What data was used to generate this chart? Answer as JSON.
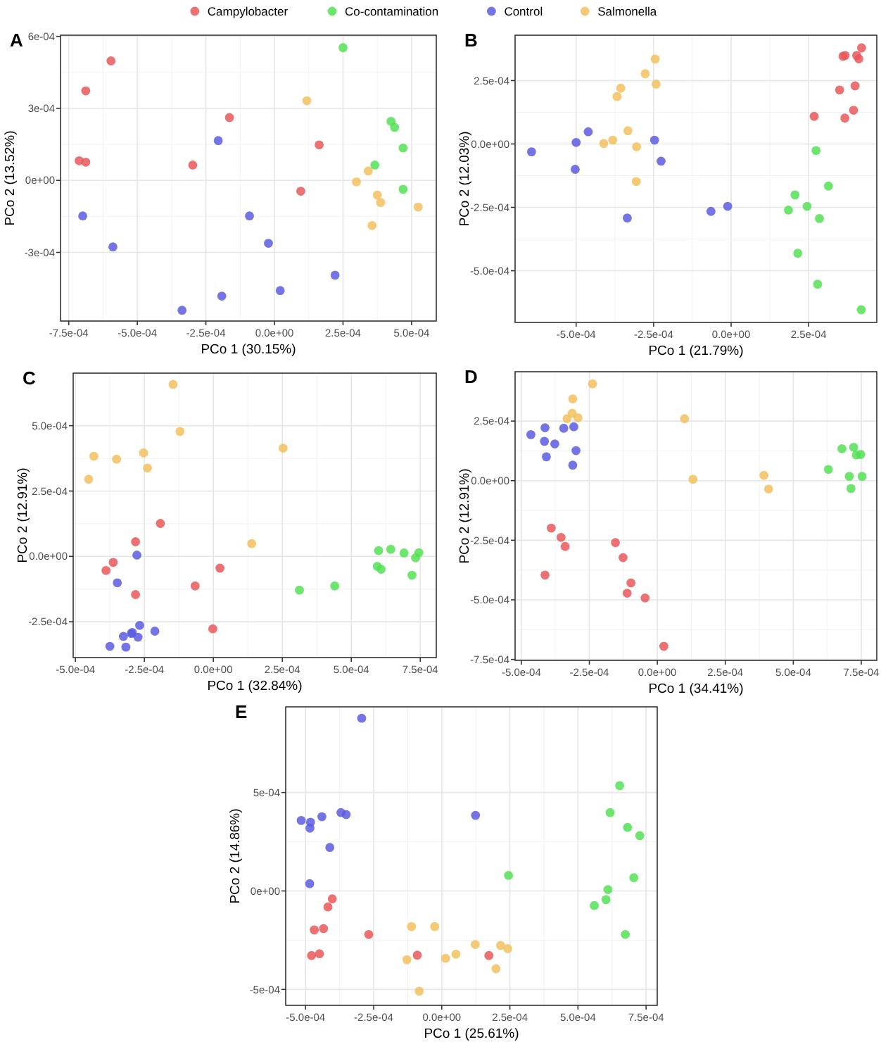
{
  "chart_data": [
    {
      "type": "scatter",
      "title": "A",
      "xlabel": "PCo 1 (30.15%)",
      "ylabel": "PCo 2 (13.52%)",
      "grid": true,
      "legend": "top",
      "marker": "circle",
      "xlim": [
        -0.00078,
        0.00059
      ],
      "ylim": [
        -0.000586,
        0.000605
      ],
      "xticks": [
        {
          "value": -0.00075,
          "label": "-7.5e-04"
        },
        {
          "value": -0.0005,
          "label": "-5.0e-04"
        },
        {
          "value": -0.00025,
          "label": "-2.5e-04"
        },
        {
          "value": 0,
          "label": "0.0e+00"
        },
        {
          "value": 0.00025,
          "label": "2.5e-04"
        },
        {
          "value": 0.0005,
          "label": "5.0e-04"
        }
      ],
      "yticks": [
        {
          "value": -0.0003,
          "label": "-3e-04"
        },
        {
          "value": 0,
          "label": "0e+00"
        },
        {
          "value": 0.0003,
          "label": "3e-04"
        },
        {
          "value": 0.0006,
          "label": "6e-04"
        }
      ],
      "series": [
        {
          "name": "Campylobacter",
          "color": "#e8585a",
          "x": [
            -0.000596,
            -0.000688,
            -0.000712,
            -0.000688,
            -0.000164,
            -0.000298,
            0.000163,
            9.6e-05
          ],
          "values": [
            0.000498,
            0.000373,
            8.2e-05,
            7.6e-05,
            0.000262,
            6.4e-05,
            0.000148,
            -4.5e-05
          ]
        },
        {
          "name": "Co-contamination",
          "color": "#55e055",
          "x": [
            0.00025,
            0.000425,
            0.000438,
            0.000469,
            0.000366,
            0.000469
          ],
          "values": [
            0.000553,
            0.000246,
            0.000221,
            0.000135,
            6.4e-05,
            -3.7e-05
          ]
        },
        {
          "name": "Control",
          "color": "#5c5ce0",
          "x": [
            -0.000205,
            -0.000699,
            -0.000589,
            -9.1e-05,
            -2.2e-05,
            0.000221,
            2.1e-05,
            -0.000192,
            -0.000337
          ],
          "values": [
            0.000166,
            -0.000148,
            -0.000277,
            -0.000148,
            -0.000262,
            -0.000395,
            -0.000459,
            -0.000482,
            -0.000541
          ]
        },
        {
          "name": "Salmonella",
          "color": "#f2c15e",
          "x": [
            0.000118,
            0.000342,
            0.000299,
            0.000375,
            0.000387,
            0.000524,
            0.000356
          ],
          "values": [
            0.000332,
            3.9e-05,
            -6e-06,
            -6.1e-05,
            -9.2e-05,
            -0.000111,
            -0.000188
          ]
        }
      ]
    },
    {
      "type": "scatter",
      "title": "B",
      "xlabel": "PCo 1 (21.79%)",
      "ylabel": "PCo 2 (12.03%)",
      "grid": true,
      "marker": "circle",
      "xlim": [
        -0.000697,
        0.00047
      ],
      "ylim": [
        -0.000704,
        0.000429
      ],
      "xticks": [
        {
          "value": -0.0005,
          "label": "-5.0e-04"
        },
        {
          "value": -0.00025,
          "label": "-2.5e-04"
        },
        {
          "value": 0,
          "label": "0.0e+00"
        },
        {
          "value": 0.00025,
          "label": "2.5e-04"
        }
      ],
      "yticks": [
        {
          "value": -0.0005,
          "label": "-5.0e-04"
        },
        {
          "value": -0.00025,
          "label": "-2.5e-04"
        },
        {
          "value": 0,
          "label": "0.0e+00"
        },
        {
          "value": 0.00025,
          "label": "2.5e-04"
        }
      ],
      "series": [
        {
          "color": "#e8585a",
          "x": [
            0.000421,
            0.000368,
            0.000361,
            0.000405,
            0.000412,
            0.00035,
            0.0004,
            0.000268,
            0.000395,
            0.000367
          ],
          "values": [
            0.000379,
            0.000349,
            0.000346,
            0.000349,
            0.000336,
            0.000213,
            0.000229,
            0.000109,
            0.000133,
            0.000102
          ]
        },
        {
          "color": "#55e055",
          "x": [
            0.000274,
            0.000314,
            0.000206,
            0.000185,
            0.000245,
            0.000285,
            0.000215,
            0.000279,
            0.00042
          ],
          "values": [
            -2.6e-05,
            -0.000166,
            -0.000201,
            -0.000261,
            -0.000246,
            -0.000294,
            -0.000431,
            -0.000553,
            -0.000654
          ]
        },
        {
          "color": "#5c5ce0",
          "x": [
            -0.000644,
            -0.0005,
            -0.000461,
            -0.000503,
            -0.000247,
            -0.000226,
            -0.000335,
            -6.5e-05,
            -1.1e-05
          ],
          "values": [
            -3.1e-05,
            6e-06,
            4.8e-05,
            -0.0001,
            1.5e-05,
            -6.8e-05,
            -0.000292,
            -0.000266,
            -0.000246
          ]
        },
        {
          "color": "#f2c15e",
          "x": [
            -0.000245,
            -0.000277,
            -0.000242,
            -0.000356,
            -0.000368,
            -0.000411,
            -0.000382,
            -0.000333,
            -0.000305,
            -0.000306
          ],
          "values": [
            0.000335,
            0.000277,
            0.000236,
            0.00022,
            0.000187,
            2e-06,
            1.5e-05,
            5.2e-05,
            -1.1e-05,
            -0.000148
          ]
        }
      ]
    },
    {
      "type": "scatter",
      "title": "C",
      "xlabel": "PCo 1 (32.84%)",
      "ylabel": "PCo 2 (12.91%)",
      "grid": true,
      "marker": "circle",
      "xlim": [
        -0.000508,
        0.000808
      ],
      "ylim": [
        -0.000387,
        0.000701
      ],
      "xticks": [
        {
          "value": -0.0005,
          "label": "-5.0e-04"
        },
        {
          "value": -0.00025,
          "label": "-2.5e-04"
        },
        {
          "value": 0,
          "label": "0.0e+00"
        },
        {
          "value": 0.00025,
          "label": "2.5e-04"
        },
        {
          "value": 0.0005,
          "label": "5.0e-04"
        },
        {
          "value": 0.00075,
          "label": "7.5e-04"
        }
      ],
      "yticks": [
        {
          "value": -0.00025,
          "label": "-2.5e-04"
        },
        {
          "value": 0,
          "label": "0.0e+00"
        },
        {
          "value": 0.00025,
          "label": "2.5e-04"
        },
        {
          "value": 0.0005,
          "label": "5.0e-04"
        }
      ],
      "series": [
        {
          "color": "#e8585a",
          "x": [
            -0.000192,
            -0.000282,
            -0.000363,
            -0.000389,
            2.4e-05,
            -6.6e-05,
            -0.000282,
            -2e-06
          ],
          "values": [
            0.000126,
            5.6e-05,
            -2.3e-05,
            -5.4e-05,
            -4.5e-05,
            -0.000113,
            -0.000146,
            -0.000277
          ]
        },
        {
          "color": "#55e055",
          "x": [
            0.000599,
            0.000643,
            0.000691,
            0.000745,
            0.000733,
            0.000594,
            0.000608,
            0.00072,
            0.000312,
            0.00044
          ],
          "values": [
            2.2e-05,
            2.7e-05,
            1.3e-05,
            1.4e-05,
            -5e-06,
            -3.8e-05,
            -4.9e-05,
            -7.2e-05,
            -0.000129,
            -0.000113
          ]
        },
        {
          "color": "#5c5ce0",
          "x": [
            -0.000277,
            -0.000348,
            -0.000267,
            -0.000297,
            -0.000294,
            -0.000212,
            -0.000326,
            -0.000273,
            -0.000375,
            -0.000317
          ],
          "values": [
            5e-06,
            -0.000101,
            -0.000264,
            -0.000295,
            -0.000291,
            -0.000286,
            -0.000306,
            -0.000309,
            -0.000344,
            -0.000347
          ]
        },
        {
          "color": "#f2c15e",
          "x": [
            -0.000146,
            -0.000121,
            0.000253,
            -0.000433,
            -0.000351,
            -0.000253,
            -0.000239,
            -0.000452,
            0.000139
          ],
          "values": [
            0.000658,
            0.000478,
            0.000414,
            0.000383,
            0.000372,
            0.000396,
            0.000338,
            0.000295,
            4.9e-05
          ]
        }
      ]
    },
    {
      "type": "scatter",
      "title": "D",
      "xlabel": "PCo 1 (34.41%)",
      "ylabel": "PCo 2 (12.91%)",
      "grid": true,
      "marker": "circle",
      "xlim": [
        -0.000523,
        0.000807
      ],
      "ylim": [
        -0.000754,
        0.000457
      ],
      "xticks": [
        {
          "value": -0.0005,
          "label": "-5.0e-04"
        },
        {
          "value": -0.00025,
          "label": "-2.5e-04"
        },
        {
          "value": 0,
          "label": "0.0e+00"
        },
        {
          "value": 0.00025,
          "label": "2.5e-04"
        },
        {
          "value": 0.0005,
          "label": "5.0e-04"
        },
        {
          "value": 0.00075,
          "label": "7.5e-04"
        }
      ],
      "yticks": [
        {
          "value": -0.00075,
          "label": "-7.5e-04"
        },
        {
          "value": -0.0005,
          "label": "-5.0e-04"
        },
        {
          "value": -0.00025,
          "label": "-2.5e-04"
        },
        {
          "value": 0,
          "label": "0.0e+00"
        },
        {
          "value": 0.00025,
          "label": "2.5e-04"
        }
      ],
      "series": [
        {
          "color": "#e8585a",
          "x": [
            -0.00039,
            -0.000354,
            -0.000339,
            -0.000154,
            -0.000126,
            -9.7e-05,
            -0.000111,
            -4.5e-05,
            -0.000413,
            2.4e-05
          ],
          "values": [
            -0.000199,
            -0.000238,
            -0.000276,
            -0.00026,
            -0.000323,
            -0.000429,
            -0.000472,
            -0.000492,
            -0.000396,
            -0.000695
          ]
        },
        {
          "color": "#55e055",
          "x": [
            0.000679,
            0.000722,
            0.000732,
            0.000748,
            0.000629,
            0.000706,
            0.000753,
            0.000712
          ],
          "values": [
            0.000134,
            0.00014,
            0.000108,
            0.00011,
            4.7e-05,
            1.8e-05,
            1.8e-05,
            -3.3e-05
          ]
        },
        {
          "color": "#5c5ce0",
          "x": [
            -0.000465,
            -0.000413,
            -0.000344,
            -0.000307,
            -0.000415,
            -0.000377,
            -0.000299,
            -0.000408,
            -0.000311
          ],
          "values": [
            0.000193,
            0.000222,
            0.00022,
            0.000226,
            0.000165,
            0.000154,
            0.000126,
            0.0001,
            6.5e-05
          ]
        },
        {
          "color": "#f2c15e",
          "x": [
            -0.000238,
            -0.000311,
            -0.000313,
            -0.000332,
            -0.000292,
            0.0001,
            0.000131,
            0.000392,
            0.000409
          ],
          "values": [
            0.000406,
            0.000343,
            0.000283,
            0.00026,
            0.000264,
            0.00026,
            6e-06,
            2.2e-05,
            -3.5e-05
          ]
        }
      ]
    },
    {
      "type": "scatter",
      "title": "E",
      "xlabel": "PCo 1 (25.61%)",
      "ylabel": "PCo 2 (14.86%)",
      "grid": true,
      "marker": "circle",
      "xlim": [
        -0.000573,
        0.000791
      ],
      "ylim": [
        -0.000581,
        0.000935
      ],
      "xticks": [
        {
          "value": -0.0005,
          "label": "-5.0e-04"
        },
        {
          "value": -0.00025,
          "label": "-2.5e-04"
        },
        {
          "value": 0,
          "label": "0.0e+00"
        },
        {
          "value": 0.00025,
          "label": "2.5e-04"
        },
        {
          "value": 0.0005,
          "label": "5.0e-04"
        },
        {
          "value": 0.00075,
          "label": "7.5e-04"
        }
      ],
      "yticks": [
        {
          "value": -0.0005,
          "label": "-5e-04"
        },
        {
          "value": 0,
          "label": "0e+00"
        },
        {
          "value": 0.0005,
          "label": "5e-04"
        }
      ],
      "series": [
        {
          "color": "#e8585a",
          "x": [
            -0.000402,
            -0.000418,
            -0.000468,
            -0.000434,
            -0.000268,
            -0.000478,
            -0.000449,
            -9e-05,
            0.000173
          ],
          "values": [
            -4e-05,
            -8.1e-05,
            -0.000198,
            -0.000191,
            -0.000221,
            -0.000328,
            -0.000319,
            -0.000326,
            -0.000328
          ]
        },
        {
          "color": "#55e055",
          "x": [
            0.000245,
            0.000653,
            0.000618,
            0.000682,
            0.000727,
            0.000705,
            0.00061,
            0.000603,
            0.00056,
            0.000674
          ],
          "values": [
            7.9e-05,
            0.000535,
            0.000398,
            0.000323,
            0.000281,
            6.7e-05,
            7e-06,
            -4.4e-05,
            -7.4e-05,
            -0.000221
          ]
        },
        {
          "color": "#5c5ce0",
          "x": [
            -0.000294,
            -0.000516,
            -0.000482,
            -0.000484,
            -0.00044,
            -0.00037,
            -0.000351,
            -0.000411,
            0.000124,
            -0.000485
          ],
          "values": [
            0.000877,
            0.000358,
            0.000349,
            0.000319,
            0.000377,
            0.000398,
            0.000388,
            0.000221,
            0.000384,
            3.7e-05
          ]
        },
        {
          "color": "#f2c15e",
          "x": [
            -0.000111,
            -2.6e-05,
            -0.000128,
            1.4e-05,
            5.2e-05,
            0.000123,
            0.000216,
            0.000242,
            0.000199,
            -8.3e-05
          ],
          "values": [
            -0.000181,
            -0.000181,
            -0.000349,
            -0.000342,
            -0.000321,
            -0.000272,
            -0.000277,
            -0.000293,
            -0.000395,
            -0.000509
          ]
        }
      ]
    }
  ]
}
